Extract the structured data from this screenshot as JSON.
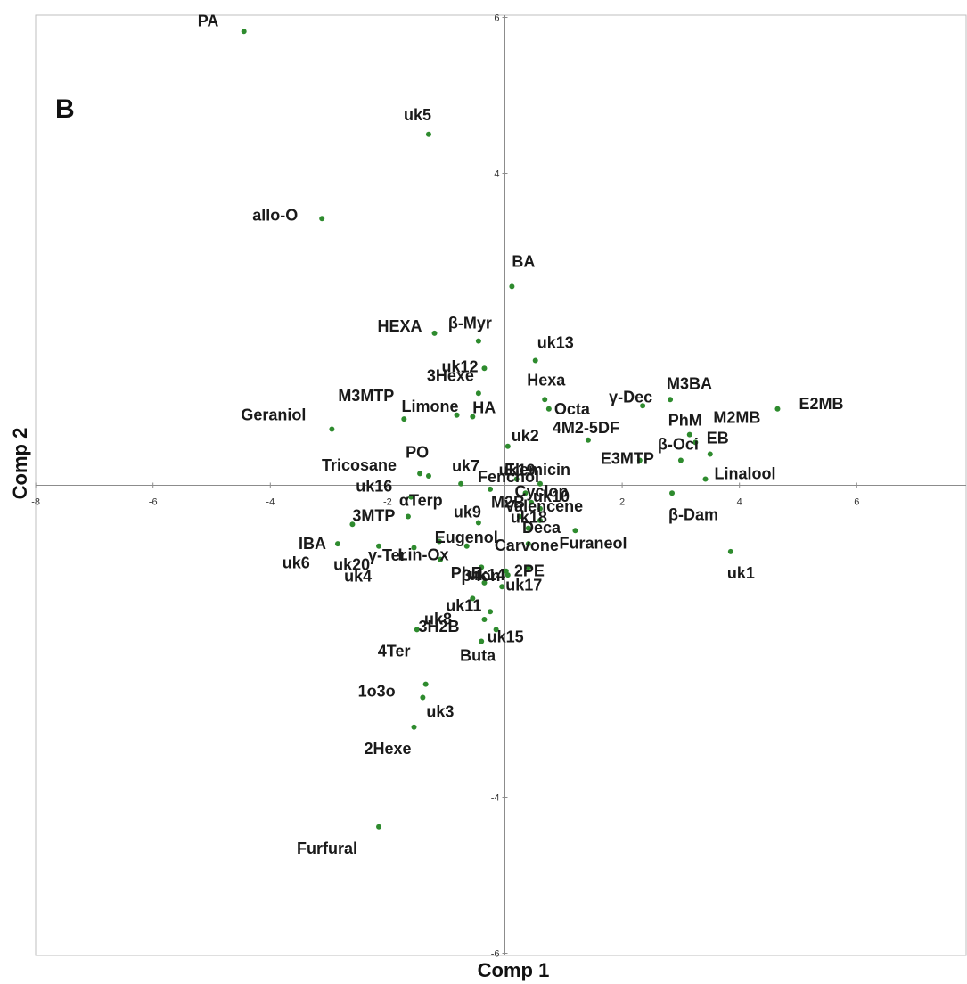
{
  "chart_data": {
    "type": "scatter",
    "panel_label": "B",
    "xlabel": "Comp 1",
    "ylabel": "Comp 2",
    "xlim": [
      -8,
      8
    ],
    "ylim": [
      -6,
      6
    ],
    "grid": false,
    "x_ticks": [
      -8,
      -6,
      -4,
      -2,
      2,
      4,
      6,
      8
    ],
    "y_ticks": [
      -6,
      -4,
      4,
      6
    ],
    "marker_color": "#2e8b2e",
    "points": [
      {
        "label": "PA",
        "x": -4.45,
        "y": 5.82
      },
      {
        "label": "uk5",
        "x": -1.3,
        "y": 4.5
      },
      {
        "label": "allo-O",
        "x": -3.12,
        "y": 3.42
      },
      {
        "label": "BA",
        "x": 0.12,
        "y": 2.55
      },
      {
        "label": "HEXA",
        "x": -1.2,
        "y": 1.95
      },
      {
        "label": "β-Myr",
        "x": -0.45,
        "y": 1.85
      },
      {
        "label": "uk13",
        "x": 0.52,
        "y": 1.6
      },
      {
        "label": "uk12",
        "x": -0.35,
        "y": 1.5
      },
      {
        "label": "3Hexe",
        "x": -0.45,
        "y": 1.18
      },
      {
        "label": "Hexa",
        "x": 0.68,
        "y": 1.1
      },
      {
        "label": "Octa",
        "x": 0.75,
        "y": 0.98
      },
      {
        "label": "γ-Dec",
        "x": 2.35,
        "y": 1.02
      },
      {
        "label": "M3BA",
        "x": 2.82,
        "y": 1.1
      },
      {
        "label": "E2MB",
        "x": 4.65,
        "y": 0.98
      },
      {
        "label": "M3MTP",
        "x": -1.72,
        "y": 0.85
      },
      {
        "label": "Limone",
        "x": -0.82,
        "y": 0.9
      },
      {
        "label": "HA",
        "x": -0.55,
        "y": 0.88
      },
      {
        "label": "Geraniol",
        "x": -2.95,
        "y": 0.72
      },
      {
        "label": "PhM",
        "x": 3.15,
        "y": 0.65
      },
      {
        "label": "M2MB",
        "x": 3.25,
        "y": 0.55
      },
      {
        "label": "4M2-5DF",
        "x": 1.42,
        "y": 0.58
      },
      {
        "label": "uk2",
        "x": 0.05,
        "y": 0.5
      },
      {
        "label": "β-Oci",
        "x": 3.0,
        "y": 0.32
      },
      {
        "label": "EB",
        "x": 3.5,
        "y": 0.4
      },
      {
        "label": "E3MTP",
        "x": 2.3,
        "y": 0.32
      },
      {
        "label": "Linalool",
        "x": 3.42,
        "y": 0.08
      },
      {
        "label": "PO",
        "x": -1.45,
        "y": 0.15
      },
      {
        "label": "Tricosane",
        "x": -1.3,
        "y": 0.12
      },
      {
        "label": "uk7",
        "x": -0.75,
        "y": 0.02
      },
      {
        "label": "uk19",
        "x": 0.2,
        "y": 0.08
      },
      {
        "label": "Elemicin",
        "x": 0.6,
        "y": 0.02
      },
      {
        "label": "Cyclop",
        "x": 0.35,
        "y": -0.1
      },
      {
        "label": "uk16",
        "x": -1.6,
        "y": -0.15
      },
      {
        "label": "Fenchol",
        "x": -0.25,
        "y": -0.05
      },
      {
        "label": "Valencene",
        "x": 0.45,
        "y": -0.22
      },
      {
        "label": "β-Dam",
        "x": 2.85,
        "y": -0.1
      },
      {
        "label": "3MTP",
        "x": -2.6,
        "y": -0.5
      },
      {
        "label": "αTerp",
        "x": -1.65,
        "y": -0.4
      },
      {
        "label": "uk9",
        "x": -0.45,
        "y": -0.48
      },
      {
        "label": "M2B",
        "x": 0.25,
        "y": -0.4
      },
      {
        "label": "uk10",
        "x": 0.6,
        "y": -0.3
      },
      {
        "label": "uk18",
        "x": 0.4,
        "y": -0.55
      },
      {
        "label": "Deca",
        "x": 0.6,
        "y": -0.45
      },
      {
        "label": "IBA",
        "x": -2.85,
        "y": -0.75
      },
      {
        "label": "γ-Ter",
        "x": -2.15,
        "y": -0.78
      },
      {
        "label": "Eugenol",
        "x": -0.65,
        "y": -0.78
      },
      {
        "label": "Carvone",
        "x": 0.4,
        "y": -0.75
      },
      {
        "label": "Furaneol",
        "x": 1.2,
        "y": -0.58
      },
      {
        "label": "uk1",
        "x": 3.85,
        "y": -0.85
      },
      {
        "label": "Lin-Ox",
        "x": -1.55,
        "y": -0.8
      },
      {
        "label": "uk6",
        "x": -1.12,
        "y": -0.72
      },
      {
        "label": "uk4",
        "x": -0.4,
        "y": -1.05
      },
      {
        "label": "uk20",
        "x": -1.1,
        "y": -0.95
      },
      {
        "label": "uk14",
        "x": 0.02,
        "y": -1.1
      },
      {
        "label": "PhE",
        "x": 0.05,
        "y": -1.15
      },
      {
        "label": "2PE",
        "x": 0.4,
        "y": -1.05
      },
      {
        "label": "β-Ion",
        "x": -0.35,
        "y": -1.25
      },
      {
        "label": "uk17",
        "x": -0.05,
        "y": -1.3
      },
      {
        "label": "uk11",
        "x": -0.55,
        "y": -1.45
      },
      {
        "label": "uk8",
        "x": -0.25,
        "y": -1.62
      },
      {
        "label": "3H2B",
        "x": -0.35,
        "y": -1.72
      },
      {
        "label": "uk15",
        "x": -0.15,
        "y": -1.85
      },
      {
        "label": "4Ter",
        "x": -1.5,
        "y": -1.85
      },
      {
        "label": "Buta",
        "x": -0.4,
        "y": -2.0
      },
      {
        "label": "1o3o",
        "x": -1.35,
        "y": -2.55
      },
      {
        "label": "uk3",
        "x": -1.4,
        "y": -2.72
      },
      {
        "label": "2Hexe",
        "x": -1.55,
        "y": -3.1
      },
      {
        "label": "Furfural",
        "x": -2.15,
        "y": -4.38
      }
    ]
  }
}
